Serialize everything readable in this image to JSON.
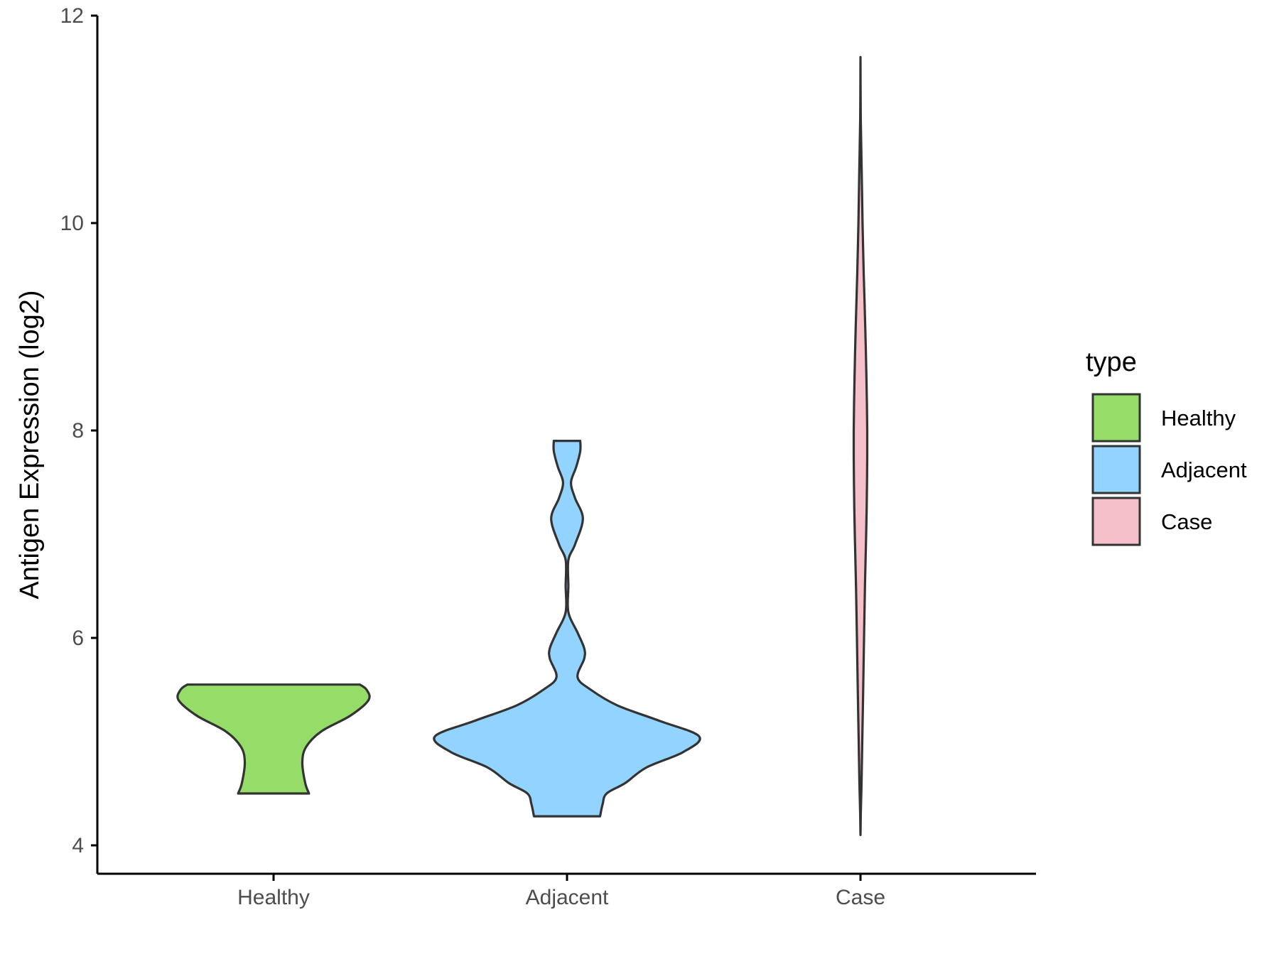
{
  "chart_data": {
    "type": "violin",
    "ylabel": "Antigen Expression (log2)",
    "xlabel": "",
    "ylim": [
      3.7,
      12
    ],
    "yticks": [
      4,
      6,
      8,
      10,
      12
    ],
    "grid": false,
    "categories": [
      "Healthy",
      "Adjacent",
      "Case"
    ],
    "legend": {
      "title": "type",
      "placement": "right",
      "items": [
        {
          "label": "Healthy",
          "color": "#95DC68"
        },
        {
          "label": "Adjacent",
          "color": "#93D3FF"
        },
        {
          "label": "Case",
          "color": "#F6C0CB"
        }
      ]
    },
    "series": [
      {
        "category": "Healthy",
        "color": "#95DC68",
        "min": 4.5,
        "max": 5.55,
        "profile": [
          [
            4.5,
            0.37
          ],
          [
            4.6,
            0.33
          ],
          [
            4.8,
            0.3
          ],
          [
            4.95,
            0.34
          ],
          [
            5.1,
            0.5
          ],
          [
            5.25,
            0.8
          ],
          [
            5.4,
            0.99
          ],
          [
            5.5,
            0.97
          ],
          [
            5.55,
            0.9
          ]
        ]
      },
      {
        "category": "Adjacent",
        "color": "#93D3FF",
        "min": 4.28,
        "max": 7.9,
        "profile": [
          [
            4.28,
            0.25
          ],
          [
            4.4,
            0.27
          ],
          [
            4.5,
            0.3
          ],
          [
            4.6,
            0.44
          ],
          [
            4.75,
            0.6
          ],
          [
            4.9,
            0.88
          ],
          [
            5.05,
            1.0
          ],
          [
            5.2,
            0.7
          ],
          [
            5.35,
            0.38
          ],
          [
            5.5,
            0.18
          ],
          [
            5.62,
            0.08
          ],
          [
            5.8,
            0.13
          ],
          [
            5.9,
            0.13
          ],
          [
            6.05,
            0.08
          ],
          [
            6.25,
            0.01
          ],
          [
            6.5,
            0.01
          ],
          [
            6.75,
            0.01
          ],
          [
            6.9,
            0.06
          ],
          [
            7.15,
            0.12
          ],
          [
            7.35,
            0.06
          ],
          [
            7.5,
            0.03
          ],
          [
            7.65,
            0.07
          ],
          [
            7.8,
            0.1
          ],
          [
            7.9,
            0.1
          ]
        ]
      },
      {
        "category": "Case",
        "color": "#F6C0CB",
        "min": 4.1,
        "max": 11.6,
        "profile": [
          [
            4.1,
            0.0
          ],
          [
            4.3,
            0.01
          ],
          [
            4.6,
            0.035
          ],
          [
            5.0,
            0.06
          ],
          [
            5.5,
            0.09
          ],
          [
            6.0,
            0.12
          ],
          [
            6.5,
            0.15
          ],
          [
            7.0,
            0.19
          ],
          [
            7.5,
            0.22
          ],
          [
            8.0,
            0.225
          ],
          [
            8.5,
            0.2
          ],
          [
            9.0,
            0.16
          ],
          [
            9.5,
            0.11
          ],
          [
            10.0,
            0.07
          ],
          [
            10.5,
            0.04
          ],
          [
            11.0,
            0.01
          ],
          [
            11.6,
            0.0
          ]
        ]
      }
    ]
  }
}
